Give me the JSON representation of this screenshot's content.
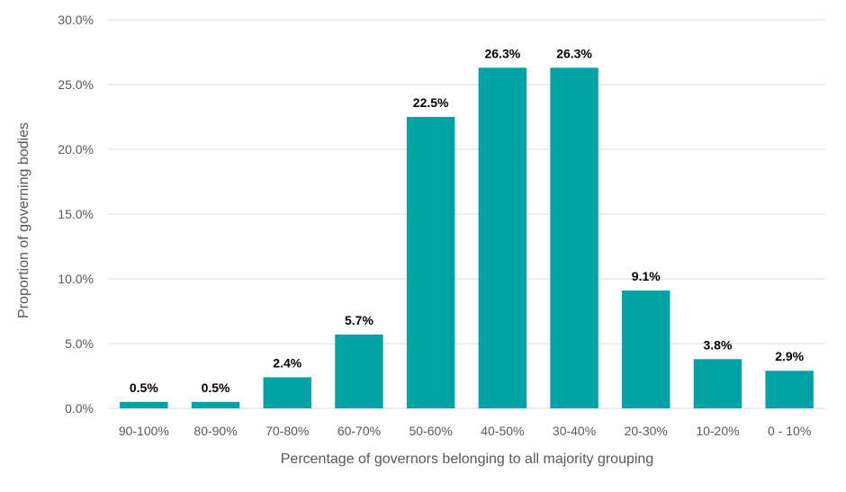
{
  "chart_data": {
    "type": "bar",
    "categories": [
      "90-100%",
      "80-90%",
      "70-80%",
      "60-70%",
      "50-60%",
      "40-50%",
      "30-40%",
      "20-30%",
      "10-20%",
      "0 - 10%"
    ],
    "values": [
      0.5,
      0.5,
      2.4,
      5.7,
      22.5,
      26.3,
      26.3,
      9.1,
      3.8,
      2.9
    ],
    "data_labels": [
      "0.5%",
      "0.5%",
      "2.4%",
      "5.7%",
      "22.5%",
      "26.3%",
      "26.3%",
      "9.1%",
      "3.8%",
      "2.9%"
    ],
    "xlabel": "Percentage of governors belonging to all majority grouping",
    "ylabel": "Proportion of governing bodies",
    "ylim": [
      0,
      30
    ],
    "yticks": [
      0,
      5,
      10,
      15,
      20,
      25,
      30
    ],
    "ytick_labels": [
      "0.0%",
      "5.0%",
      "10.0%",
      "15.0%",
      "20.0%",
      "25.0%",
      "30.0%"
    ],
    "grid": true,
    "bar_color": "#00A3A3",
    "legend": "none"
  }
}
